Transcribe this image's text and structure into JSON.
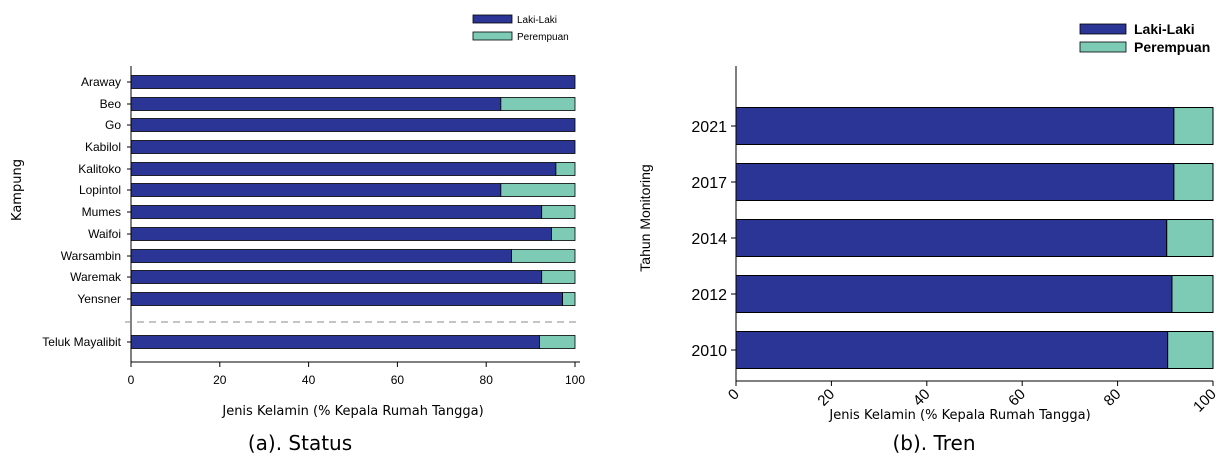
{
  "colors": {
    "male": "#2B3596",
    "female": "#7ECBB5",
    "stroke": "#000000",
    "separator": "#888888"
  },
  "chart_data": [
    {
      "type": "bar",
      "orientation": "horizontal",
      "stacked": true,
      "caption": "(a). Status",
      "xlabel": "Jenis Kelamin (% Kepala Rumah Tangga)",
      "ylabel": "Kampung",
      "xlim": [
        0,
        100
      ],
      "xticks": [
        "0",
        "20",
        "40",
        "60",
        "80",
        "100"
      ],
      "legend_position": "top-right",
      "categories": [
        "Araway",
        "Beo",
        "Go",
        "Kabilol",
        "Kalitoko",
        "Lopintol",
        "Mumes",
        "Waifoi",
        "Warsambin",
        "Waremak",
        "Yensner",
        "Teluk Mayalibit"
      ],
      "series": [
        {
          "name": "Laki-Laki",
          "values": [
            100,
            83.3,
            100,
            100,
            95.7,
            83.3,
            92.5,
            94.7,
            85.7,
            92.5,
            97.2,
            92.0
          ]
        },
        {
          "name": "Perempuan",
          "values": [
            0,
            16.7,
            0,
            0,
            4.3,
            16.7,
            7.5,
            5.3,
            14.3,
            7.5,
            2.8,
            8.0
          ]
        }
      ]
    },
    {
      "type": "bar",
      "orientation": "horizontal",
      "stacked": true,
      "caption": "(b). Tren",
      "xlabel": "Jenis Kelamin (% Kepala Rumah Tangga)",
      "ylabel": "Tahun Monitoring",
      "xlim": [
        0,
        100
      ],
      "xticks": [
        "0",
        "20",
        "40",
        "60",
        "80",
        "100"
      ],
      "legend_position": "top-right",
      "categories": [
        "2021",
        "2017",
        "2014",
        "2012",
        "2010"
      ],
      "series": [
        {
          "name": "Laki-Laki",
          "values": [
            91.8,
            91.8,
            90.3,
            91.4,
            90.5
          ]
        },
        {
          "name": "Perempuan",
          "values": [
            8.2,
            8.2,
            9.7,
            8.6,
            9.5
          ]
        }
      ]
    }
  ]
}
